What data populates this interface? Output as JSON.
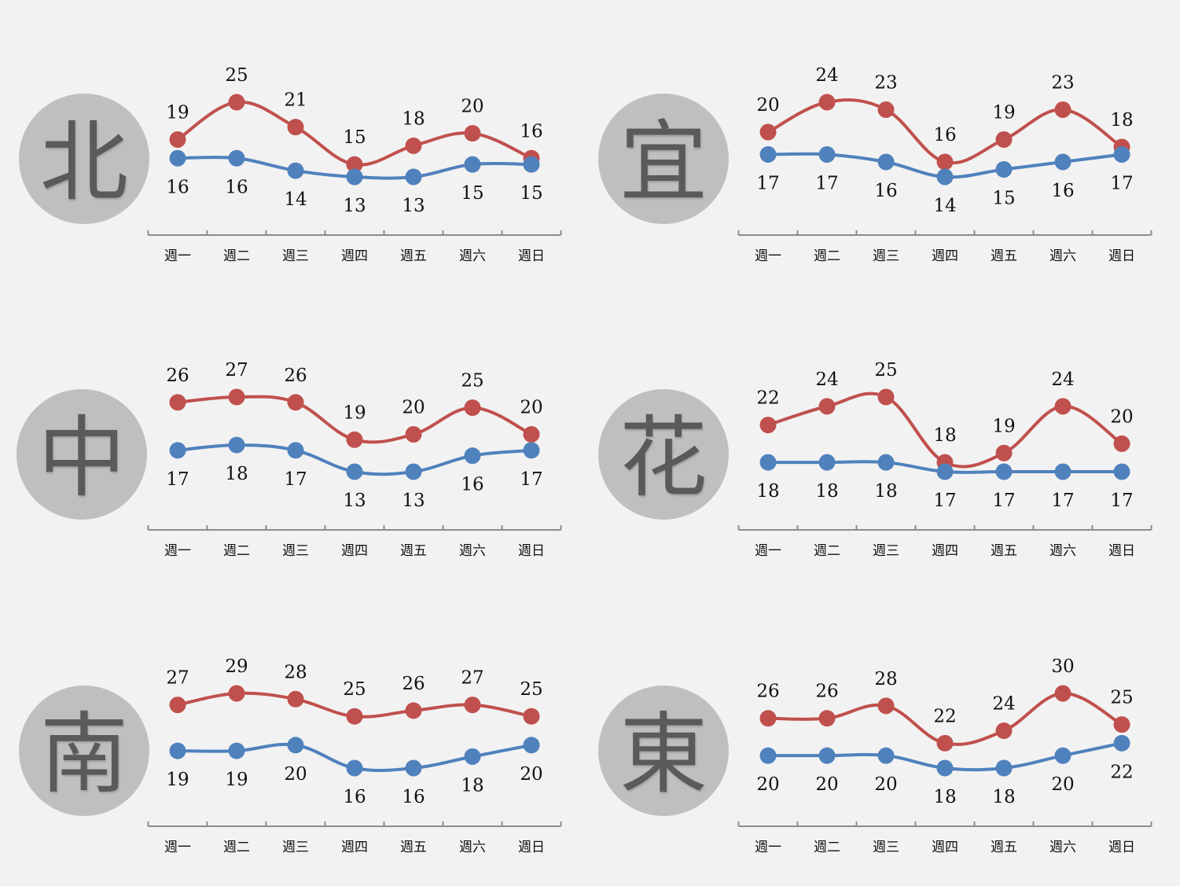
{
  "colors": {
    "high": "#c0504d",
    "low": "#4f81bd",
    "axis": "#8c8c8c",
    "badge": "#bfbfbf",
    "background": "#f2f2f2"
  },
  "chart_data": [
    {
      "type": "line",
      "region": "北",
      "categories": [
        "週一",
        "週二",
        "週三",
        "週四",
        "週五",
        "週六",
        "週日"
      ],
      "series": [
        {
          "values": [
            19,
            25,
            21,
            15,
            18,
            20,
            16
          ]
        },
        {
          "values": [
            16,
            16,
            14,
            13,
            13,
            15,
            15
          ]
        }
      ]
    },
    {
      "type": "line",
      "region": "宜",
      "categories": [
        "週一",
        "週二",
        "週三",
        "週四",
        "週五",
        "週六",
        "週日"
      ],
      "series": [
        {
          "values": [
            20,
            24,
            23,
            16,
            19,
            23,
            18
          ]
        },
        {
          "values": [
            17,
            17,
            16,
            14,
            15,
            16,
            17
          ]
        }
      ]
    },
    {
      "type": "line",
      "region": "中",
      "categories": [
        "週一",
        "週二",
        "週三",
        "週四",
        "週五",
        "週六",
        "週日"
      ],
      "series": [
        {
          "values": [
            26,
            27,
            26,
            19,
            20,
            25,
            20
          ]
        },
        {
          "values": [
            17,
            18,
            17,
            13,
            13,
            16,
            17
          ]
        }
      ]
    },
    {
      "type": "line",
      "region": "花",
      "categories": [
        "週一",
        "週二",
        "週三",
        "週四",
        "週五",
        "週六",
        "週日"
      ],
      "series": [
        {
          "values": [
            22,
            24,
            25,
            18,
            19,
            24,
            20
          ]
        },
        {
          "values": [
            18,
            18,
            18,
            17,
            17,
            17,
            17
          ]
        }
      ]
    },
    {
      "type": "line",
      "region": "南",
      "categories": [
        "週一",
        "週二",
        "週三",
        "週四",
        "週五",
        "週六",
        "週日"
      ],
      "series": [
        {
          "values": [
            27,
            29,
            28,
            25,
            26,
            27,
            25
          ]
        },
        {
          "values": [
            19,
            19,
            20,
            16,
            16,
            18,
            20
          ]
        }
      ]
    },
    {
      "type": "line",
      "region": "東",
      "categories": [
        "週一",
        "週二",
        "週三",
        "週四",
        "週五",
        "週六",
        "週日"
      ],
      "series": [
        {
          "values": [
            26,
            26,
            28,
            22,
            24,
            30,
            25
          ]
        },
        {
          "values": [
            20,
            20,
            20,
            18,
            18,
            20,
            22
          ]
        }
      ]
    }
  ]
}
